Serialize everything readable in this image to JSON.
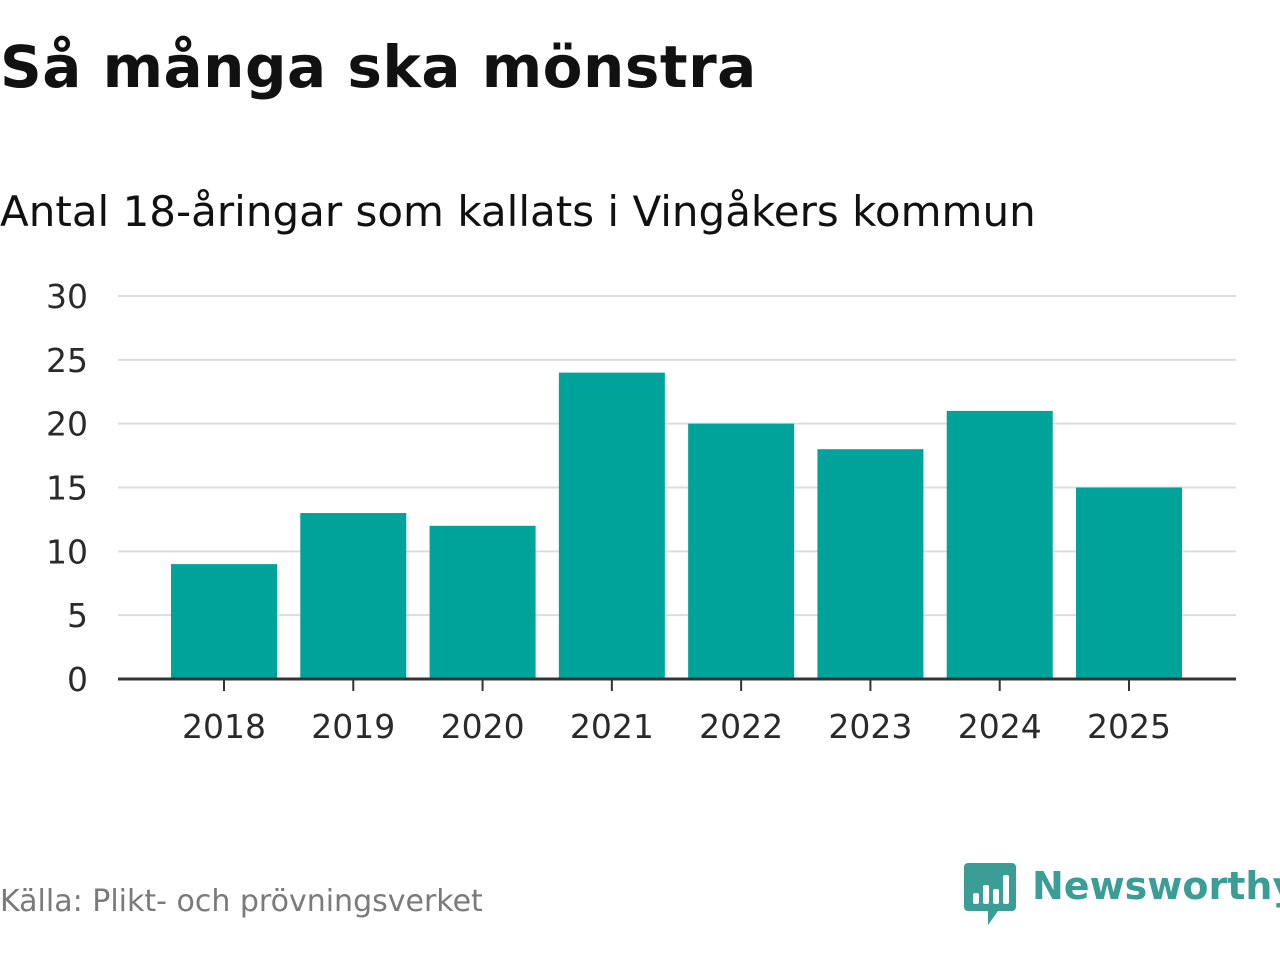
{
  "colors": {
    "bar": "#00a39a",
    "grid": "#dddddd",
    "axis": "#333333",
    "brand": "#3a9e96"
  },
  "chart_data": {
    "type": "bar",
    "title": "Så många ska mönstra",
    "subtitle": "Antal 18-åringar som kallats i Vingåkers kommun",
    "categories": [
      "2018",
      "2019",
      "2020",
      "2021",
      "2022",
      "2023",
      "2024",
      "2025"
    ],
    "values": [
      9,
      13,
      12,
      24,
      20,
      18,
      21,
      15
    ],
    "yticks": [
      "0",
      "5",
      "10",
      "15",
      "20",
      "25",
      "30"
    ],
    "ylim": [
      0,
      30
    ],
    "grid": true,
    "xlabel": "",
    "ylabel": ""
  },
  "footer": {
    "source": "Källa: Plikt- och prövningsverket",
    "brand": "Newsworthy",
    "brand_icon": "newsworthy-logo-icon"
  }
}
